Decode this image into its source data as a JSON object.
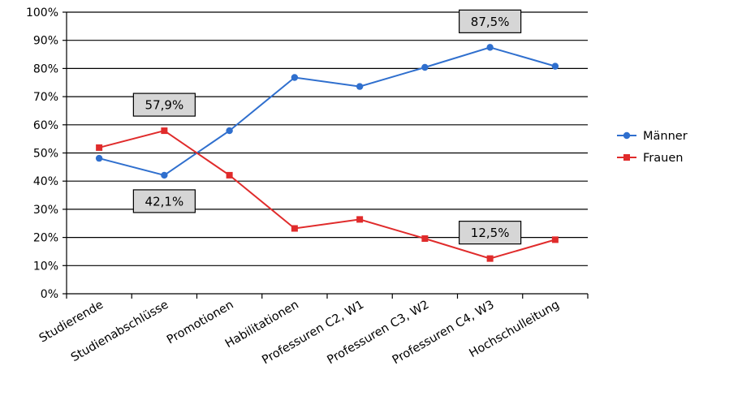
{
  "chart_data": {
    "type": "line",
    "title": "",
    "xlabel": "",
    "ylabel": "",
    "ylim": [
      0,
      100
    ],
    "y_ticks": [
      0,
      10,
      20,
      30,
      40,
      50,
      60,
      70,
      80,
      90,
      100
    ],
    "y_tick_labels": [
      "0%",
      "10%",
      "20%",
      "30%",
      "40%",
      "50%",
      "60%",
      "70%",
      "80%",
      "90%",
      "100%"
    ],
    "grid": true,
    "legend_position": "right",
    "categories": [
      "Studierende",
      "Studienabschlüsse",
      "Promotionen",
      "Habilitationen",
      "Professuren C2, W1",
      "Professuren C3, W2",
      "Professuren C4, W3",
      "Hochschulleitung"
    ],
    "series": [
      {
        "name": "Männer",
        "color": "#2f6fce",
        "marker": "circle",
        "values": [
          48.1,
          42.1,
          57.9,
          76.8,
          73.6,
          80.4,
          87.5,
          80.8
        ]
      },
      {
        "name": "Frauen",
        "color": "#e02b2b",
        "marker": "square",
        "values": [
          51.9,
          57.9,
          42.1,
          23.2,
          26.4,
          19.6,
          12.5,
          19.2
        ]
      }
    ],
    "annotations": [
      {
        "text": "57,9%",
        "category_index": 1,
        "series": "Frauen",
        "placement": "above"
      },
      {
        "text": "42,1%",
        "category_index": 1,
        "series": "Männer",
        "placement": "below"
      },
      {
        "text": "87,5%",
        "category_index": 6,
        "series": "Männer",
        "placement": "above"
      },
      {
        "text": "12,5%",
        "category_index": 6,
        "series": "Frauen",
        "placement": "above"
      }
    ]
  }
}
